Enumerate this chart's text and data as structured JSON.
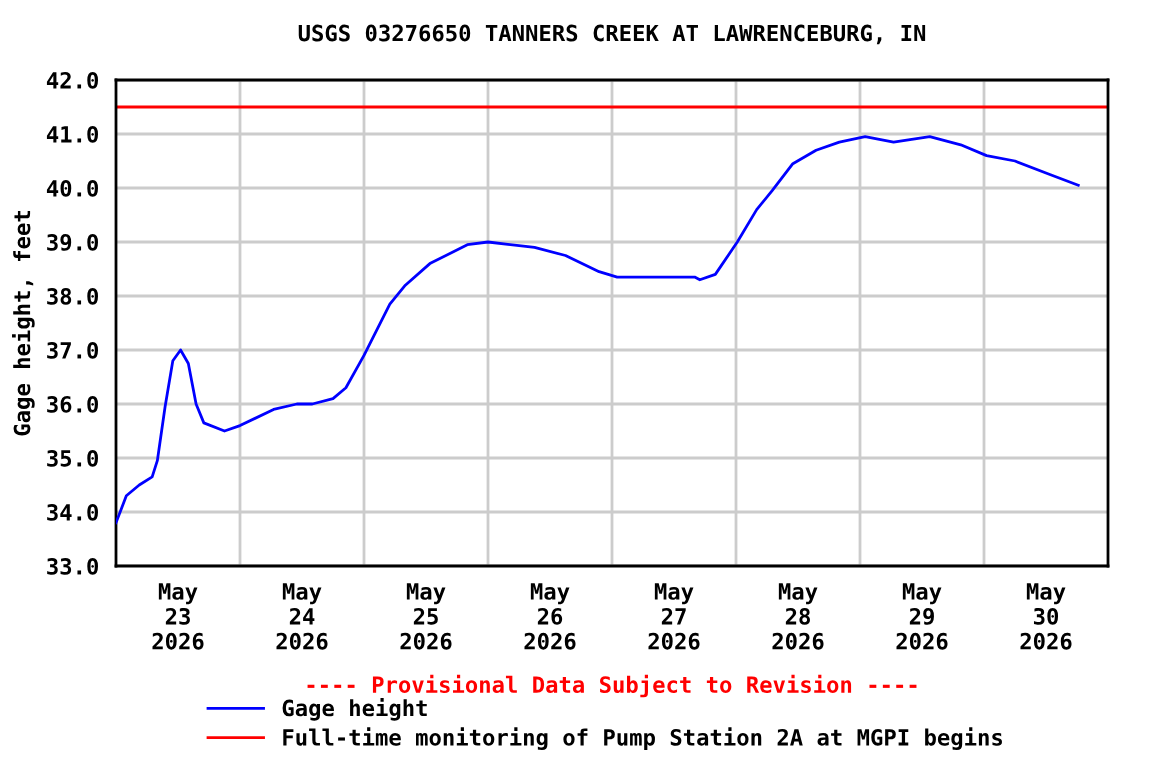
{
  "chart_data": {
    "type": "line",
    "title": "USGS 03276650 TANNERS CREEK AT LAWRENCEBURG, IN",
    "ylabel": "Gage height, feet",
    "x": [
      "2026-05-23T00:00",
      "2026-05-23T02:00",
      "2026-05-23T04:30",
      "2026-05-23T07:00",
      "2026-05-23T08:00",
      "2026-05-23T09:30",
      "2026-05-23T11:00",
      "2026-05-23T12:30",
      "2026-05-23T14:00",
      "2026-05-23T15:30",
      "2026-05-23T17:00",
      "2026-05-23T21:00",
      "2026-05-24T00:00",
      "2026-05-24T06:30",
      "2026-05-24T11:00",
      "2026-05-24T14:00",
      "2026-05-24T18:00",
      "2026-05-24T20:30",
      "2026-05-25T00:00",
      "2026-05-25T05:00",
      "2026-05-25T08:00",
      "2026-05-25T12:45",
      "2026-05-25T20:00",
      "2026-05-26T00:00",
      "2026-05-26T09:00",
      "2026-05-26T15:00",
      "2026-05-26T21:30",
      "2026-05-27T01:00",
      "2026-05-27T16:00",
      "2026-05-27T17:00",
      "2026-05-27T20:00",
      "2026-05-28T00:15",
      "2026-05-28T04:00",
      "2026-05-28T07:00",
      "2026-05-28T11:00",
      "2026-05-28T15:30",
      "2026-05-28T20:00",
      "2026-05-29T01:00",
      "2026-05-29T06:30",
      "2026-05-29T13:30",
      "2026-05-29T19:30",
      "2026-05-30T00:30",
      "2026-05-30T06:00",
      "2026-05-30T12:45",
      "2026-05-30T18:15"
    ],
    "series": [
      {
        "name": "Gage height",
        "color": "#0000ff",
        "values": [
          33.8,
          34.3,
          34.5,
          34.65,
          34.95,
          35.95,
          36.8,
          37.0,
          36.75,
          36.0,
          35.65,
          35.5,
          35.6,
          35.9,
          36.0,
          36.0,
          36.1,
          36.3,
          36.9,
          37.85,
          38.2,
          38.6,
          38.95,
          39.0,
          38.9,
          38.75,
          38.45,
          38.35,
          38.35,
          38.3,
          38.4,
          39.0,
          39.6,
          39.95,
          40.45,
          40.7,
          40.85,
          40.95,
          40.85,
          40.95,
          40.8,
          40.6,
          40.5,
          40.25,
          40.05
        ]
      }
    ],
    "ref_lines": [
      {
        "axis": "y",
        "value": 41.5,
        "label": "Full-time monitoring of Pump Station 2A at MGPI begins",
        "color": "#ff0000"
      }
    ],
    "annotations": [
      "---- Provisional Data Subject to Revision ----"
    ],
    "xlim": [
      "2026-05-23",
      "2026-05-31"
    ],
    "xticks": [
      {
        "value": "2026-05-23T12:00",
        "label": "May\n23\n2026"
      },
      {
        "value": "2026-05-24",
        "label": null
      },
      {
        "value": "2026-05-24T12:00",
        "label": "May\n24\n2026"
      },
      {
        "value": "2026-05-25",
        "label": null
      },
      {
        "value": "2026-05-25T12:00",
        "label": "May\n25\n2026"
      },
      {
        "value": "2026-05-26",
        "label": null
      },
      {
        "value": "2026-05-26T12:00",
        "label": "May\n26\n2026"
      },
      {
        "value": "2026-05-27",
        "label": null
      },
      {
        "value": "2026-05-27T12:00",
        "label": "May\n27\n2026"
      },
      {
        "value": "2026-05-28",
        "label": null
      },
      {
        "value": "2026-05-28T12:00",
        "label": "May\n28\n2026"
      },
      {
        "value": "2026-05-29",
        "label": null
      },
      {
        "value": "2026-05-29T12:00",
        "label": "May\n29\n2026"
      },
      {
        "value": "2026-05-30",
        "label": null
      },
      {
        "value": "2026-05-30T12:00",
        "label": "May\n30\n2026"
      }
    ],
    "ylim": [
      33.0,
      42.0
    ],
    "yticks": [
      {
        "value": 33,
        "label": "33.0"
      },
      {
        "value": 34,
        "label": "34.0"
      },
      {
        "value": 35,
        "label": "35.0"
      },
      {
        "value": 36,
        "label": "36.0"
      },
      {
        "value": 37,
        "label": "37.0"
      },
      {
        "value": 38,
        "label": "38.0"
      },
      {
        "value": 39,
        "label": "39.0"
      },
      {
        "value": 40,
        "label": "40.0"
      },
      {
        "value": 41,
        "label": "41.0"
      },
      {
        "value": 42,
        "label": "42.0"
      }
    ],
    "grid": true,
    "legend": "bottom",
    "marker": "none",
    "line_style": "solid"
  }
}
